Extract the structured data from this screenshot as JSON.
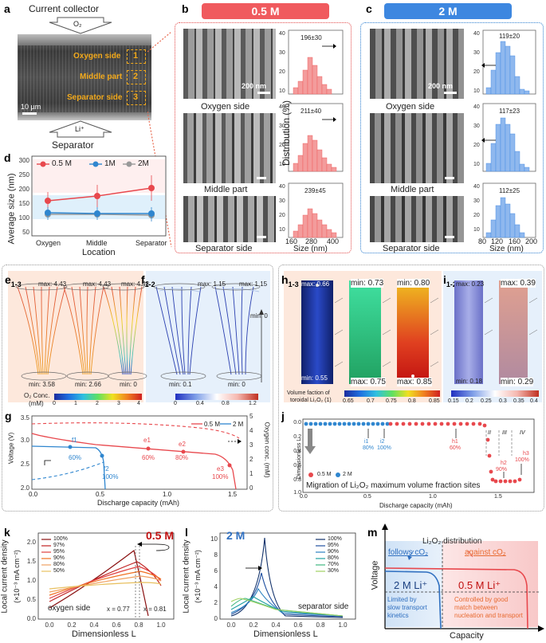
{
  "panel_a": {
    "letter": "a",
    "top_label": "Current collector",
    "o2": "O₂",
    "li": "Li⁺",
    "bottom_label": "Separator",
    "zones": [
      {
        "name": "Oxygen side",
        "num": "1"
      },
      {
        "name": "Middle part",
        "num": "2"
      },
      {
        "name": "Separator side",
        "num": "3"
      }
    ],
    "scale": "10 µm"
  },
  "panel_b": {
    "letter": "b",
    "title": "0.5 M",
    "accent": "#f05a5e",
    "scale": "200 nm",
    "captions": [
      "Oxygen side",
      "Middle part",
      "Separator side"
    ],
    "y_axis": "Distribution (%)",
    "x_axis": "Size (nm)",
    "x_ticks": [
      "160",
      "280",
      "400"
    ]
  },
  "panel_c": {
    "letter": "c",
    "title": "2 M",
    "accent": "#3d87e0",
    "scale": "200 nm",
    "captions": [
      "Oxygen side",
      "Middle part",
      "Separator side"
    ],
    "x_axis": "Size (nm)",
    "x_ticks": [
      "80",
      "120",
      "160",
      "200"
    ]
  },
  "panel_d": {
    "letter": "d",
    "legend": [
      "0.5 M",
      "1M",
      "2M"
    ],
    "colors": [
      "#e8484d",
      "#2f86cf",
      "#999999"
    ],
    "y_label": "Average size (nm)",
    "x_label": "Location",
    "y_ticks": [
      "50",
      "100",
      "150",
      "200",
      "250",
      "300"
    ],
    "x_ticks": [
      "Oxygen",
      "Middle",
      "Separator"
    ]
  },
  "panel_e": {
    "letter": "e",
    "sub": "1-3",
    "max_labels": [
      "max: 4.43",
      "max: 4.43",
      "max: 4.43"
    ],
    "min_labels": [
      "min: 3.58",
      "min: 2.66",
      "min: 0"
    ],
    "colorbar_ticks": [
      "0",
      "1",
      "2",
      "3",
      "4"
    ],
    "colorbar_label1": "O₂ Conc.",
    "colorbar_label2": "(mM)"
  },
  "panel_f": {
    "letter": "f",
    "sub": "1-2",
    "max_label": "max: 1.15",
    "max_label2": "max: 1.15",
    "min_label1": "min: 0.1",
    "min_label2": "min: 0",
    "min_label3": "min: 0",
    "colorbar_ticks": [
      "0",
      "0.4",
      "0.8",
      "1.2"
    ]
  },
  "panel_g": {
    "letter": "g",
    "legend": [
      "0.5 M",
      "2 M"
    ],
    "y_left": "Voltage (V)",
    "y_right": "Oxygen conc. (mM)",
    "x_label": "Discharge capacity (mAh)",
    "y_ticks": [
      "2.0",
      "2.5",
      "3.0",
      "3.5"
    ],
    "y_right_ticks": [
      "0",
      "1",
      "2",
      "3",
      "4",
      "5"
    ],
    "x_ticks": [
      "0.0",
      "0.5",
      "1.0",
      "1.5"
    ],
    "markers": [
      {
        "name": "f1",
        "pct": "60%"
      },
      {
        "name": "f2",
        "pct": "100%"
      },
      {
        "name": "e1",
        "pct": "60%"
      },
      {
        "name": "e2",
        "pct": "80%"
      },
      {
        "name": "e3",
        "pct": "100%"
      }
    ]
  },
  "panel_h": {
    "letter": "h",
    "sub": "1-3",
    "labels": [
      "max: 0.66",
      "min: 0.73",
      "min: 0.80",
      "min: 0.55",
      "max: 0.75",
      "max: 0.85"
    ],
    "colorbar_caption1": "Volume faction of",
    "colorbar_caption2": "toroidal Li₂O₂ (1)",
    "colorbar_ticks": [
      "0.65",
      "0.7",
      "0.75",
      "0.8",
      "0.85"
    ]
  },
  "panel_i": {
    "letter": "i",
    "sub": "1-2",
    "labels": [
      "max: 0.23",
      "max: 0.39",
      "min: 0.18",
      "min: 0.29"
    ],
    "colorbar_ticks": [
      "0.15",
      "0.2",
      "0.25",
      "0.3",
      "0.35",
      "0.4"
    ]
  },
  "panel_j": {
    "letter": "j",
    "y_label": "Dimensionless L",
    "x_label": "Discharge capacity (mAh)",
    "legend": [
      "0.5 M",
      "2 M"
    ],
    "title": "Migration of Li₂O₂ maximum volume fraction sites",
    "x_ticks": [
      "0.0",
      "0.5",
      "1.0",
      "1.5"
    ],
    "y_ticks": [
      "0.0",
      "0.2",
      "0.4",
      "0.6",
      "0.8",
      "1.0"
    ],
    "regions": [
      "I",
      "II",
      "III",
      "IV"
    ],
    "markers": [
      {
        "name": "i1",
        "pct": "80%"
      },
      {
        "name": "i2",
        "pct": "100%"
      },
      {
        "name": "h1",
        "pct": "60%"
      },
      {
        "name": "h2",
        "pct": "90%"
      },
      {
        "name": "h3",
        "pct": "100%"
      }
    ]
  },
  "panel_k": {
    "letter": "k",
    "title": "0.5 M",
    "legend": [
      "100%",
      "97%",
      "95%",
      "90%",
      "80%",
      "50%"
    ],
    "y_label1": "Local current density",
    "y_label2": "(×10⁻³ mA cm⁻²)",
    "x_label": "Dimensionless L",
    "x_ticks": [
      "0.0",
      "0.2",
      "0.4",
      "0.6",
      "0.8",
      "1.0"
    ],
    "y_ticks": [
      "0.0",
      "0.5",
      "1.0",
      "1.5",
      "2.0"
    ],
    "left_note": "oxygen side",
    "ann1": "x = 0.77",
    "ann2": "x = 0.81"
  },
  "panel_l": {
    "letter": "l",
    "title": "2 M",
    "legend": [
      "100%",
      "95%",
      "90%",
      "80%",
      "70%",
      "30%"
    ],
    "y_label1": "Local current density",
    "y_label2": "(×10⁻³ mA cm⁻²)",
    "x_label": "Dimensionless L",
    "x_ticks": [
      "0.0",
      "0.2",
      "0.4",
      "0.6",
      "0.8",
      "1.0"
    ],
    "y_ticks": [
      "0",
      "2",
      "4",
      "6",
      "8",
      "10"
    ],
    "right_note": "separator side"
  },
  "panel_m": {
    "letter": "m",
    "top": "Li₂O₂ distribution",
    "follows": "follows cO₂",
    "against": "against cO₂",
    "left_region": "2 M Li⁺",
    "right_region": "0.5 M Li⁺",
    "left_note": [
      "Limited by",
      "slow transport",
      "kinetics"
    ],
    "right_note": [
      "Controlled by good",
      "match between",
      "nucleation and transport"
    ],
    "y_label": "Voltage",
    "x_label": "Capacity"
  }
}
